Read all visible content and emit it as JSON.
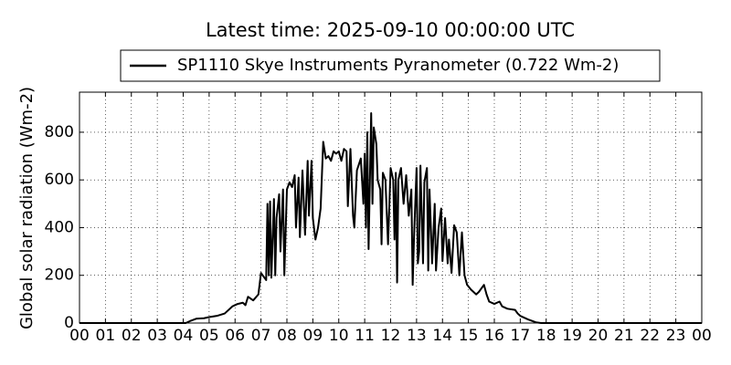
{
  "chart_data": {
    "type": "line",
    "title": "Latest time: 2025-09-10 00:00:00 UTC",
    "y_label": "Global solar radiation (Wm-2)",
    "x": [
      0,
      4.1,
      4.3,
      4.5,
      4.8,
      5.0,
      5.3,
      5.6,
      5.9,
      6.1,
      6.3,
      6.4,
      6.5,
      6.7,
      6.9,
      7.0,
      7.1,
      7.2,
      7.25,
      7.3,
      7.35,
      7.4,
      7.5,
      7.55,
      7.6,
      7.7,
      7.75,
      7.85,
      7.9,
      8.0,
      8.1,
      8.2,
      8.3,
      8.35,
      8.45,
      8.5,
      8.6,
      8.7,
      8.8,
      8.85,
      8.95,
      9.0,
      9.1,
      9.2,
      9.3,
      9.4,
      9.5,
      9.6,
      9.7,
      9.8,
      9.9,
      10.0,
      10.1,
      10.2,
      10.3,
      10.35,
      10.45,
      10.55,
      10.6,
      10.7,
      10.85,
      10.95,
      11.0,
      11.05,
      11.1,
      11.15,
      11.25,
      11.3,
      11.35,
      11.45,
      11.5,
      11.6,
      11.65,
      11.7,
      11.8,
      11.9,
      12.0,
      12.1,
      12.15,
      12.2,
      12.25,
      12.3,
      12.4,
      12.5,
      12.6,
      12.7,
      12.8,
      12.85,
      12.9,
      13.0,
      13.05,
      13.1,
      13.15,
      13.25,
      13.3,
      13.4,
      13.45,
      13.5,
      13.6,
      13.7,
      13.75,
      13.85,
      13.95,
      14.0,
      14.1,
      14.2,
      14.25,
      14.35,
      14.45,
      14.55,
      14.65,
      14.75,
      14.85,
      14.95,
      15.1,
      15.3,
      15.4,
      15.6,
      15.7,
      15.8,
      16.0,
      16.2,
      16.3,
      16.5,
      16.8,
      16.9,
      17.0,
      17.3,
      17.6,
      17.8,
      24
    ],
    "series": [
      {
        "name": "SP1110 Skye Instruments Pyranometer (0.722 Wm-2)",
        "color": "#000000",
        "values": [
          0,
          0,
          10,
          18,
          20,
          25,
          30,
          40,
          70,
          80,
          85,
          75,
          110,
          95,
          120,
          210,
          195,
          180,
          500,
          200,
          510,
          190,
          520,
          200,
          440,
          540,
          300,
          560,
          200,
          560,
          590,
          570,
          620,
          400,
          610,
          360,
          640,
          370,
          680,
          450,
          680,
          440,
          350,
          400,
          480,
          760,
          690,
          700,
          680,
          720,
          710,
          720,
          680,
          730,
          720,
          490,
          730,
          450,
          400,
          640,
          690,
          500,
          710,
          400,
          800,
          310,
          880,
          500,
          820,
          750,
          600,
          560,
          330,
          630,
          600,
          330,
          650,
          600,
          350,
          630,
          170,
          600,
          650,
          500,
          620,
          450,
          560,
          160,
          350,
          650,
          250,
          300,
          660,
          250,
          590,
          650,
          220,
          560,
          250,
          500,
          220,
          400,
          480,
          260,
          440,
          250,
          350,
          210,
          410,
          380,
          200,
          380,
          200,
          160,
          140,
          120,
          130,
          160,
          120,
          90,
          80,
          90,
          70,
          60,
          55,
          40,
          30,
          15,
          3,
          0,
          0
        ]
      }
    ],
    "xlim": [
      0,
      24
    ],
    "xticks": [
      {
        "value": 0,
        "label": "00"
      },
      {
        "value": 1,
        "label": "01"
      },
      {
        "value": 2,
        "label": "02"
      },
      {
        "value": 3,
        "label": "03"
      },
      {
        "value": 4,
        "label": "04"
      },
      {
        "value": 5,
        "label": "05"
      },
      {
        "value": 6,
        "label": "06"
      },
      {
        "value": 7,
        "label": "07"
      },
      {
        "value": 8,
        "label": "08"
      },
      {
        "value": 9,
        "label": "09"
      },
      {
        "value": 10,
        "label": "10"
      },
      {
        "value": 11,
        "label": "11"
      },
      {
        "value": 12,
        "label": "12"
      },
      {
        "value": 13,
        "label": "13"
      },
      {
        "value": 14,
        "label": "14"
      },
      {
        "value": 15,
        "label": "15"
      },
      {
        "value": 16,
        "label": "16"
      },
      {
        "value": 17,
        "label": "17"
      },
      {
        "value": 18,
        "label": "18"
      },
      {
        "value": 19,
        "label": "19"
      },
      {
        "value": 20,
        "label": "20"
      },
      {
        "value": 21,
        "label": "21"
      },
      {
        "value": 22,
        "label": "22"
      },
      {
        "value": 23,
        "label": "23"
      },
      {
        "value": 24,
        "label": "00"
      }
    ],
    "ylim": [
      0,
      968
    ],
    "yticks": [
      0,
      200,
      400,
      600,
      800
    ],
    "grid": true
  }
}
